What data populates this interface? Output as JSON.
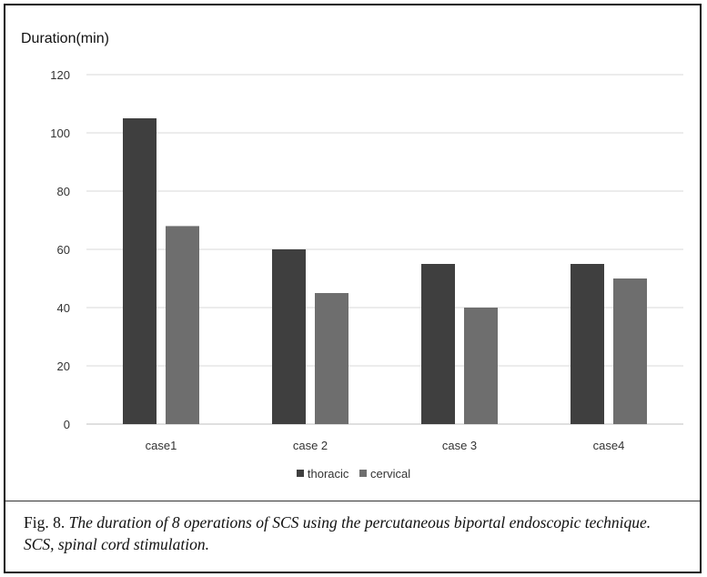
{
  "chart_data": {
    "type": "bar",
    "ylabel": "Duration(min)",
    "categories": [
      "case1",
      "case 2",
      "case 3",
      "case4"
    ],
    "series": [
      {
        "name": "thoracic",
        "values": [
          105,
          60,
          55,
          55
        ],
        "color": "#3f3f3f"
      },
      {
        "name": "cervical",
        "values": [
          68,
          45,
          40,
          50
        ],
        "color": "#6e6e6e"
      }
    ],
    "ylim": [
      0,
      120
    ],
    "yticks": [
      0,
      20,
      40,
      60,
      80,
      100,
      120
    ],
    "grid": true,
    "legend_position": "bottom"
  },
  "caption": {
    "label": "Fig. 8.",
    "text": "The duration of 8 operations of SCS using the percutaneous biportal endoscopic technique. SCS, spinal cord stimulation."
  }
}
